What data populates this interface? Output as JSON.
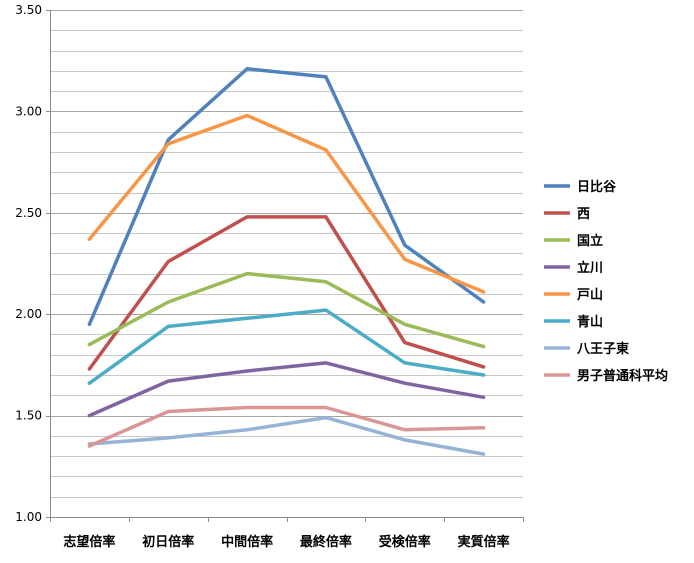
{
  "chart_data": {
    "type": "line",
    "title": "",
    "xlabel": "",
    "ylabel": "",
    "ylim": [
      1.0,
      3.5
    ],
    "y_ticks": [
      "1.00",
      "1.50",
      "2.00",
      "2.50",
      "3.00",
      "3.50"
    ],
    "y_tick_values": [
      1.0,
      1.5,
      2.0,
      2.5,
      3.0,
      3.5
    ],
    "y_minor_step": 0.1,
    "grid": true,
    "legend_position": "right",
    "categories": [
      "志望倍率",
      "初日倍率",
      "中間倍率",
      "最終倍率",
      "受検倍率",
      "実質倍率"
    ],
    "series": [
      {
        "name": "日比谷",
        "color": "#4f81bd",
        "values": [
          1.95,
          2.86,
          3.21,
          3.17,
          2.34,
          2.06
        ]
      },
      {
        "name": "西",
        "color": "#c0504d",
        "values": [
          1.73,
          2.26,
          2.48,
          2.48,
          1.86,
          1.74
        ]
      },
      {
        "name": "国立",
        "color": "#9bbb59",
        "values": [
          1.85,
          2.06,
          2.2,
          2.16,
          1.95,
          1.84
        ]
      },
      {
        "name": "立川",
        "color": "#8064a2",
        "values": [
          1.5,
          1.67,
          1.72,
          1.76,
          1.66,
          1.59
        ]
      },
      {
        "name": "戸山",
        "color": "#f79646",
        "values": [
          2.37,
          2.84,
          2.98,
          2.81,
          2.27,
          2.11
        ]
      },
      {
        "name": "青山",
        "color": "#4bacc6",
        "values": [
          1.66,
          1.94,
          1.98,
          2.02,
          1.76,
          1.7
        ]
      },
      {
        "name": "八王子東",
        "color": "#95b3d7",
        "values": [
          1.36,
          1.39,
          1.43,
          1.49,
          1.38,
          1.31
        ]
      },
      {
        "name": "男子普通科平均",
        "color": "#d99694",
        "values": [
          1.35,
          1.52,
          1.54,
          1.54,
          1.43,
          1.44
        ]
      }
    ]
  }
}
